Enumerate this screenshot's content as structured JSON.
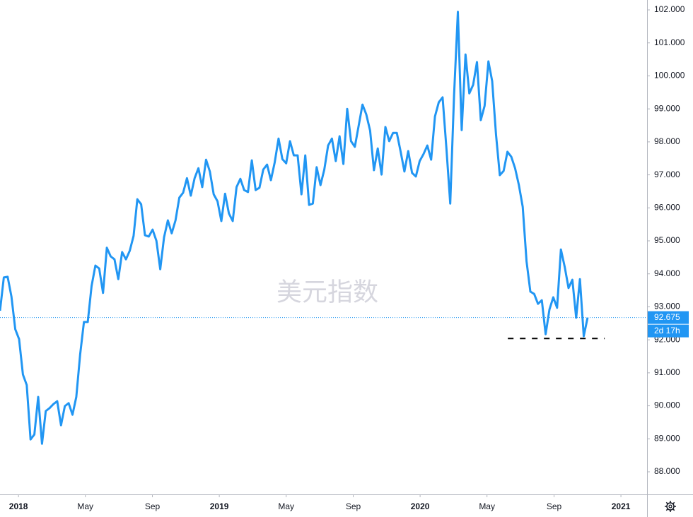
{
  "chart_data": {
    "type": "line",
    "watermark": "美元指数",
    "color": "#2196f3",
    "x": [
      2017.908,
      2017.927,
      2017.946,
      2017.965,
      2017.984,
      2018.003,
      2018.022,
      2018.041,
      2018.06,
      2018.079,
      2018.098,
      2018.117,
      2018.136,
      2018.155,
      2018.174,
      2018.193,
      2018.212,
      2018.231,
      2018.25,
      2018.269,
      2018.288,
      2018.307,
      2018.326,
      2018.345,
      2018.364,
      2018.383,
      2018.402,
      2018.421,
      2018.44,
      2018.459,
      2018.478,
      2018.497,
      2018.516,
      2018.535,
      2018.554,
      2018.573,
      2018.592,
      2018.611,
      2018.63,
      2018.649,
      2018.668,
      2018.687,
      2018.706,
      2018.725,
      2018.744,
      2018.763,
      2018.782,
      2018.801,
      2018.82,
      2018.839,
      2018.858,
      2018.877,
      2018.896,
      2018.915,
      2018.934,
      2018.953,
      2018.972,
      2018.991,
      2019.01,
      2019.029,
      2019.048,
      2019.067,
      2019.086,
      2019.105,
      2019.124,
      2019.143,
      2019.162,
      2019.181,
      2019.2,
      2019.219,
      2019.238,
      2019.257,
      2019.276,
      2019.295,
      2019.314,
      2019.333,
      2019.352,
      2019.371,
      2019.39,
      2019.409,
      2019.428,
      2019.447,
      2019.466,
      2019.485,
      2019.504,
      2019.523,
      2019.542,
      2019.561,
      2019.58,
      2019.599,
      2019.618,
      2019.637,
      2019.656,
      2019.675,
      2019.694,
      2019.713,
      2019.732,
      2019.751,
      2019.77,
      2019.789,
      2019.808,
      2019.827,
      2019.846,
      2019.865,
      2019.884,
      2019.903,
      2019.922,
      2019.941,
      2019.96,
      2019.979,
      2019.998,
      2020.017,
      2020.036,
      2020.055,
      2020.074,
      2020.093,
      2020.112,
      2020.131,
      2020.15,
      2020.169,
      2020.188,
      2020.207,
      2020.226,
      2020.245,
      2020.264,
      2020.283,
      2020.302,
      2020.321,
      2020.34,
      2020.359,
      2020.378,
      2020.397,
      2020.416,
      2020.435,
      2020.454,
      2020.473,
      2020.492,
      2020.511,
      2020.53,
      2020.549,
      2020.568,
      2020.587,
      2020.606,
      2020.625,
      2020.644,
      2020.663,
      2020.682,
      2020.701,
      2020.72,
      2020.739,
      2020.758,
      2020.777,
      2020.796,
      2020.815,
      2020.834
    ],
    "values": [
      92.88,
      93.89,
      93.91,
      93.31,
      92.32,
      92.02,
      90.95,
      90.63,
      88.98,
      89.13,
      90.27,
      88.85,
      89.84,
      89.93,
      90.05,
      90.14,
      89.41,
      89.99,
      90.08,
      89.73,
      90.27,
      91.55,
      92.54,
      92.54,
      93.63,
      94.25,
      94.16,
      93.42,
      94.79,
      94.53,
      94.44,
      93.84,
      94.66,
      94.44,
      94.7,
      95.15,
      96.26,
      96.11,
      95.17,
      95.13,
      95.34,
      95.0,
      94.14,
      95.11,
      95.62,
      95.23,
      95.62,
      96.31,
      96.46,
      96.9,
      96.37,
      96.9,
      97.2,
      96.63,
      97.46,
      97.1,
      96.41,
      96.2,
      95.6,
      96.43,
      95.83,
      95.6,
      96.63,
      96.88,
      96.54,
      96.48,
      97.44,
      96.54,
      96.61,
      97.16,
      97.31,
      96.84,
      97.38,
      98.1,
      97.48,
      97.35,
      98.02,
      97.59,
      97.59,
      96.41,
      97.59,
      96.09,
      96.13,
      97.23,
      96.69,
      97.16,
      97.89,
      98.1,
      97.42,
      98.17,
      97.33,
      99.0,
      98.02,
      97.85,
      98.49,
      99.13,
      98.83,
      98.34,
      97.14,
      97.8,
      97.01,
      98.45,
      98.02,
      98.27,
      98.27,
      97.7,
      97.1,
      97.72,
      97.06,
      96.95,
      97.42,
      97.63,
      97.89,
      97.46,
      98.77,
      99.2,
      99.35,
      97.8,
      96.13,
      99.41,
      101.94,
      98.36,
      100.65,
      99.47,
      99.73,
      100.42,
      98.66,
      99.09,
      100.44,
      99.84,
      98.23,
      96.99,
      97.12,
      97.7,
      97.55,
      97.2,
      96.69,
      96.03,
      94.38,
      93.46,
      93.39,
      93.09,
      93.2,
      92.17,
      92.92,
      93.29,
      92.97,
      94.74,
      94.21,
      93.57,
      93.82,
      92.67,
      93.84,
      92.11,
      92.67
    ],
    "xlim": [
      2017.908,
      2021.13
    ],
    "xticks": [
      2018,
      {
        "value": 2018.333,
        "label": "May"
      },
      {
        "value": 2018.667,
        "label": "Sep"
      },
      2019,
      {
        "value": 2019.333,
        "label": "May"
      },
      {
        "value": 2019.667,
        "label": "Sep"
      },
      2020,
      {
        "value": 2020.333,
        "label": "May"
      },
      {
        "value": 2020.667,
        "label": "Sep"
      },
      2021
    ],
    "ylim": [
      87.315,
      102.3
    ],
    "yticks": [
      {
        "value": 88,
        "label": "88.000"
      },
      {
        "value": 89,
        "label": "89.000"
      },
      {
        "value": 90,
        "label": "90.000"
      },
      {
        "value": 91,
        "label": "91.000"
      },
      {
        "value": 92,
        "label": "92.000"
      },
      {
        "value": 93,
        "label": "93.000"
      },
      {
        "value": 94,
        "label": "94.000"
      },
      {
        "value": 95,
        "label": "95.000"
      },
      {
        "value": 96,
        "label": "96.000"
      },
      {
        "value": 97,
        "label": "97.000"
      },
      {
        "value": 98,
        "label": "98.000"
      },
      {
        "value": 99,
        "label": "99.000"
      },
      {
        "value": 100,
        "label": "100.000"
      },
      {
        "value": 101,
        "label": "101.000"
      },
      {
        "value": 102,
        "label": "102.000"
      }
    ],
    "last_price": {
      "value": 92.675,
      "label": "92.675"
    },
    "countdown": "2d 17h",
    "support_level": 92.04,
    "support_range": [
      2020.437,
      2020.919
    ]
  }
}
